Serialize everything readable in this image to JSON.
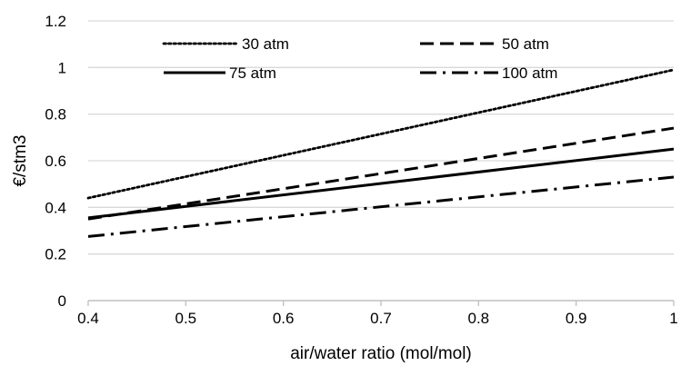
{
  "chart_data": {
    "type": "line",
    "xlabel": "air/water ratio (mol/mol)",
    "ylabel": "€/stm3",
    "xlim": [
      0.4,
      1.0
    ],
    "ylim": [
      0,
      1.2
    ],
    "x_ticks": [
      0.4,
      0.5,
      0.6,
      0.7,
      0.8,
      0.9,
      1.0
    ],
    "x_tick_labels": [
      "0.4",
      "0.5",
      "0.6",
      "0.7",
      "0.8",
      "0.9",
      "1"
    ],
    "y_ticks": [
      0,
      0.2,
      0.4,
      0.6,
      0.8,
      1.0,
      1.2
    ],
    "y_tick_labels": [
      "0",
      "0.2",
      "0.4",
      "0.6",
      "0.8",
      "1",
      "1.2"
    ],
    "grid": "horizontal",
    "legend_position": "top, inside plot, two columns",
    "series": [
      {
        "name": "30 atm",
        "line_style": "dotted",
        "color": "#000000",
        "x": [
          0.4,
          1.0
        ],
        "values": [
          0.44,
          0.99
        ]
      },
      {
        "name": "50 atm",
        "line_style": "dashed",
        "color": "#000000",
        "x": [
          0.4,
          1.0
        ],
        "values": [
          0.35,
          0.74
        ]
      },
      {
        "name": "75 atm",
        "line_style": "solid",
        "color": "#000000",
        "x": [
          0.4,
          1.0
        ],
        "values": [
          0.355,
          0.65
        ]
      },
      {
        "name": "100 atm",
        "line_style": "dash-dot",
        "color": "#000000",
        "x": [
          0.4,
          1.0
        ],
        "values": [
          0.275,
          0.53
        ]
      }
    ],
    "colors": {
      "grid": "#d9d9d9",
      "axis": "#bfbfbf"
    }
  }
}
